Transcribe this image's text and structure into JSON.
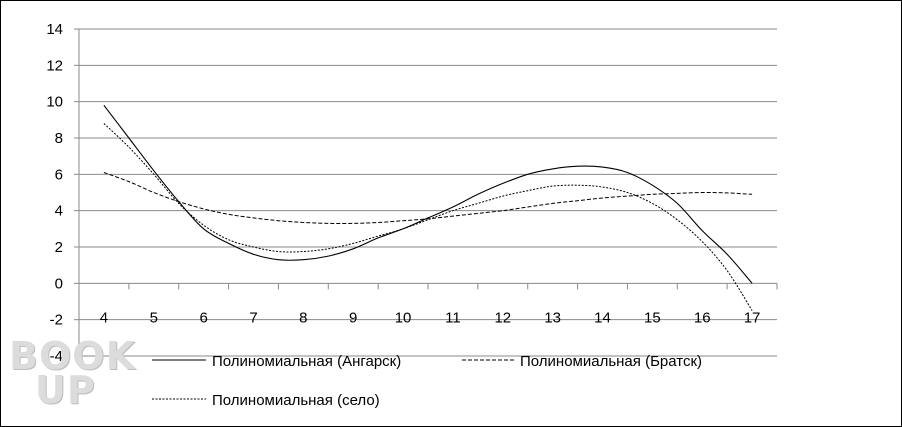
{
  "chart_data": {
    "type": "line",
    "title": "",
    "xlabel": "",
    "ylabel": "",
    "x_ticks": [
      "4",
      "5",
      "6",
      "7",
      "8",
      "9",
      "10",
      "11",
      "12",
      "13",
      "14",
      "15",
      "16",
      "17"
    ],
    "y_ticks": [
      "14",
      "12",
      "10",
      "8",
      "6",
      "4",
      "2",
      "0",
      "-2",
      "-4"
    ],
    "xlim": [
      4,
      17
    ],
    "ylim": [
      -4,
      14
    ],
    "grid": true,
    "legend_position": "bottom",
    "series": [
      {
        "name": "Полиномиальная (Ангарск)",
        "style": "solid",
        "x": [
          4,
          4.5,
          5,
          5.5,
          6,
          6.5,
          7,
          7.5,
          8,
          8.5,
          9,
          9.5,
          10,
          10.5,
          11,
          11.5,
          12,
          12.5,
          13,
          13.5,
          14,
          14.5,
          15,
          15.5,
          16,
          16.5,
          17
        ],
        "y": [
          9.8,
          8.0,
          6.2,
          4.5,
          3.0,
          2.2,
          1.6,
          1.3,
          1.3,
          1.5,
          1.9,
          2.5,
          3.0,
          3.6,
          4.2,
          4.9,
          5.5,
          6.0,
          6.3,
          6.45,
          6.4,
          6.1,
          5.4,
          4.4,
          2.9,
          1.6,
          0.0
        ]
      },
      {
        "name": "Полиномиальная (Братск)",
        "style": "dashed",
        "x": [
          4,
          4.5,
          5,
          5.5,
          6,
          6.5,
          7,
          7.5,
          8,
          8.5,
          9,
          9.5,
          10,
          10.5,
          11,
          11.5,
          12,
          12.5,
          13,
          13.5,
          14,
          14.5,
          15,
          15.5,
          16,
          16.5,
          17
        ],
        "y": [
          6.1,
          5.6,
          5.0,
          4.5,
          4.1,
          3.8,
          3.6,
          3.45,
          3.35,
          3.3,
          3.3,
          3.35,
          3.45,
          3.55,
          3.7,
          3.85,
          4.0,
          4.2,
          4.4,
          4.55,
          4.7,
          4.8,
          4.9,
          4.95,
          5.0,
          4.98,
          4.9
        ]
      },
      {
        "name": "Полиномиальная (село)",
        "style": "dotted",
        "x": [
          4,
          4.5,
          5,
          5.5,
          6,
          6.5,
          7,
          7.5,
          8,
          8.5,
          9,
          9.5,
          10,
          10.5,
          11,
          11.5,
          12,
          12.5,
          13,
          13.5,
          14,
          14.5,
          15,
          15.5,
          16,
          16.5,
          17
        ],
        "y": [
          8.8,
          7.5,
          6.0,
          4.4,
          3.2,
          2.4,
          2.0,
          1.75,
          1.75,
          1.9,
          2.2,
          2.6,
          3.0,
          3.5,
          4.0,
          4.4,
          4.8,
          5.1,
          5.35,
          5.4,
          5.3,
          5.0,
          4.4,
          3.5,
          2.3,
          0.7,
          -1.5
        ]
      }
    ]
  },
  "watermark": {
    "line1": "BOOK",
    "line2": "UP"
  }
}
